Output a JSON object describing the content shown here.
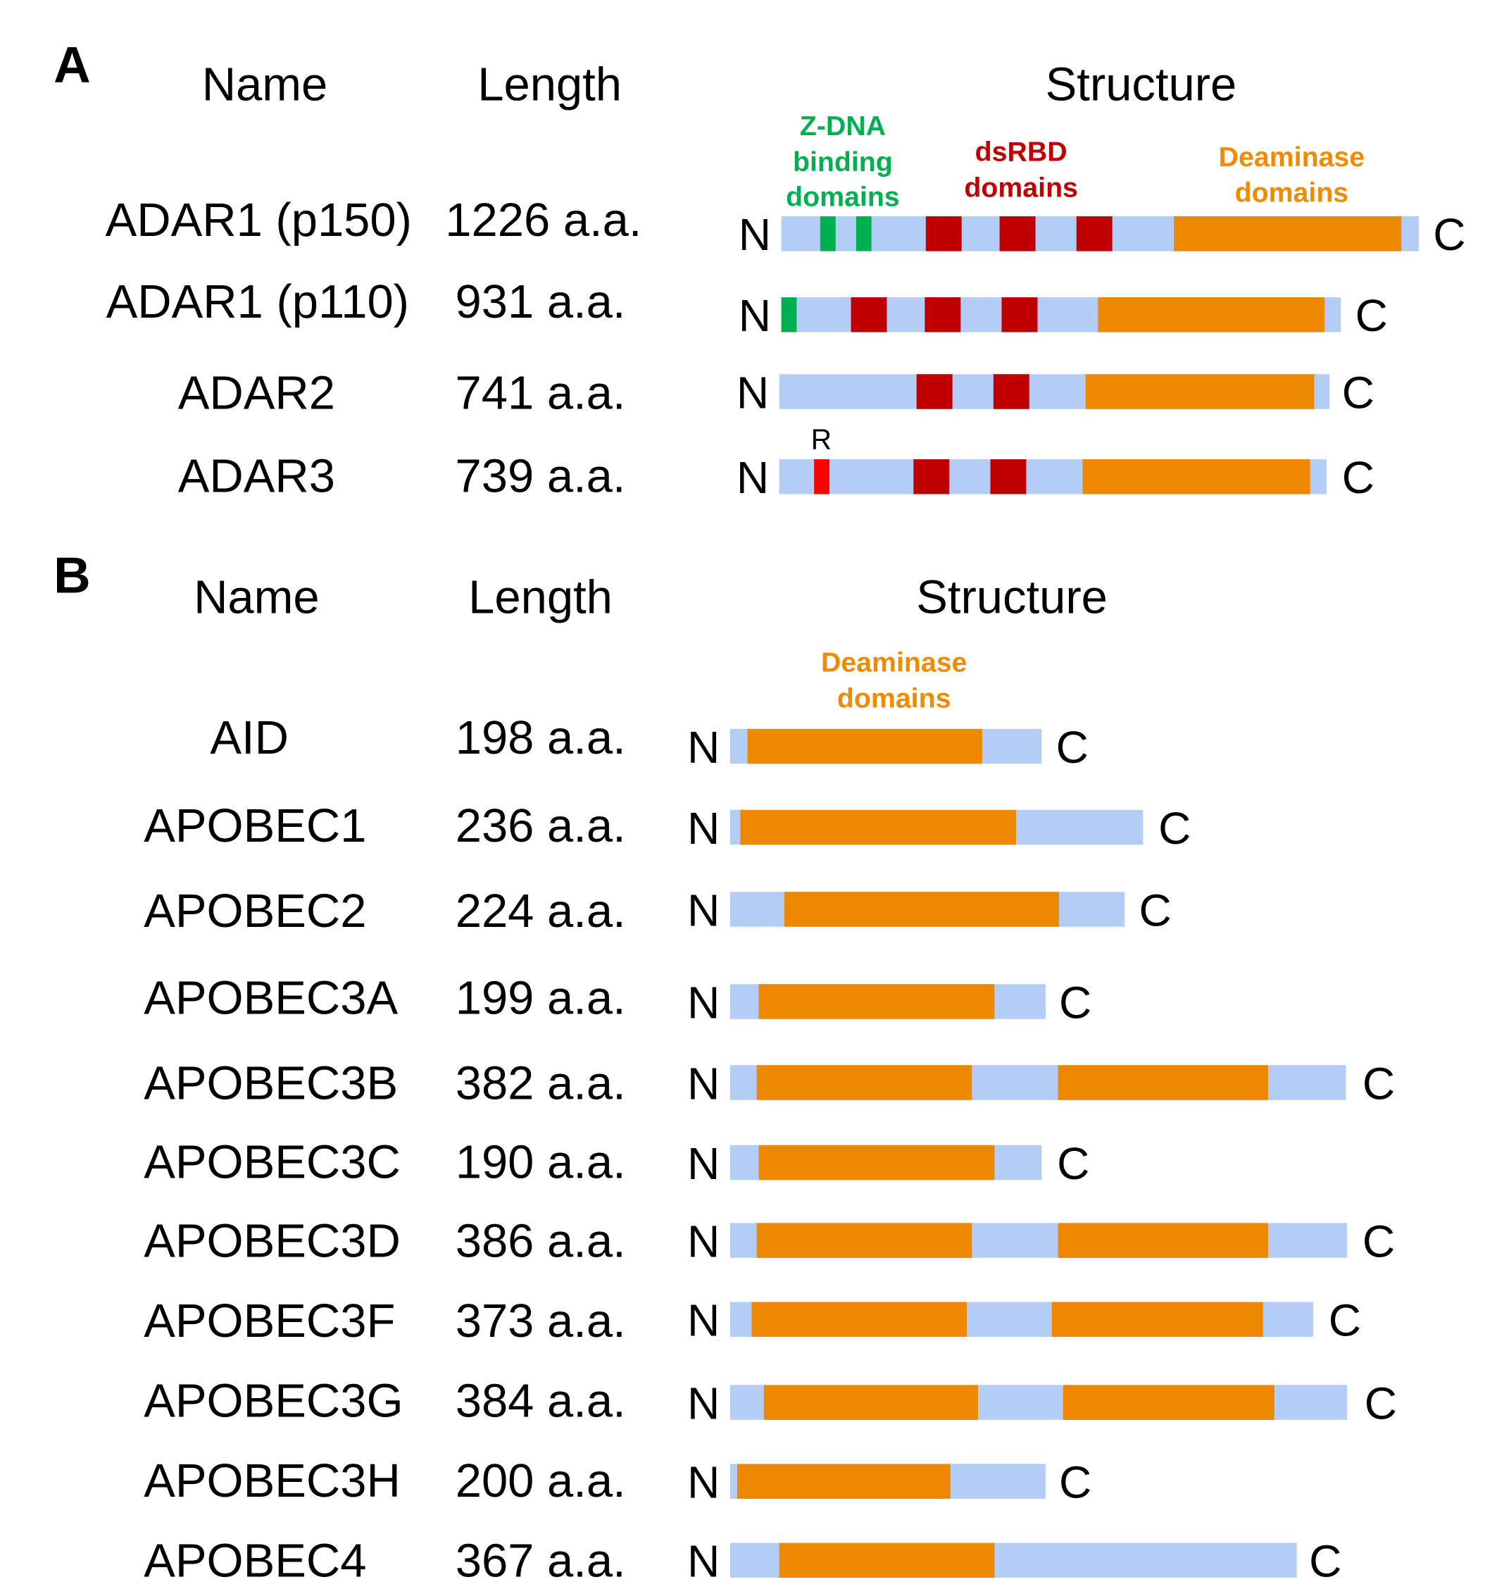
{
  "colors": {
    "linker": "#b4cdf6",
    "deaminase": "#ee8800",
    "dsrbd": "#c00000",
    "zdna": "#00b050",
    "r_domain": "#ff0000"
  },
  "panel_a": {
    "label": "A",
    "headers": {
      "name": "Name",
      "length": "Length",
      "structure": "Structure"
    },
    "legend": {
      "zdna": [
        "Z-DNA",
        "binding",
        "domains"
      ],
      "dsrbd": [
        "dsRBD",
        "domains"
      ],
      "deaminase": [
        "Deaminase",
        "domains"
      ]
    },
    "r_label": "R",
    "rows": [
      {
        "name": "ADAR1 (p150)",
        "length": "1226 a.a.",
        "n": "N",
        "c": "C"
      },
      {
        "name": "ADAR1 (p110)",
        "length": "931 a.a.",
        "n": "N",
        "c": "C"
      },
      {
        "name": "ADAR2",
        "length": "741 a.a.",
        "n": "N",
        "c": "C"
      },
      {
        "name": "ADAR3",
        "length": "739 a.a.",
        "n": "N",
        "c": "C"
      }
    ]
  },
  "panel_b": {
    "label": "B",
    "headers": {
      "name": "Name",
      "length": "Length",
      "structure": "Structure"
    },
    "legend": {
      "deaminase": [
        "Deaminase",
        "domains"
      ]
    },
    "rows": [
      {
        "name": "AID",
        "length": "198 a.a.",
        "n": "N",
        "c": "C"
      },
      {
        "name": "APOBEC1",
        "length": "236 a.a.",
        "n": "N",
        "c": "C"
      },
      {
        "name": "APOBEC2",
        "length": "224 a.a.",
        "n": "N",
        "c": "C"
      },
      {
        "name": "APOBEC3A",
        "length": "199 a.a.",
        "n": "N",
        "c": "C"
      },
      {
        "name": "APOBEC3B",
        "length": "382 a.a.",
        "n": "N",
        "c": "C"
      },
      {
        "name": "APOBEC3C",
        "length": "190 a.a.",
        "n": "N",
        "c": "C"
      },
      {
        "name": "APOBEC3D",
        "length": "386 a.a.",
        "n": "N",
        "c": "C"
      },
      {
        "name": "APOBEC3F",
        "length": "373 a.a.",
        "n": "N",
        "c": "C"
      },
      {
        "name": "APOBEC3G",
        "length": "384 a.a.",
        "n": "N",
        "c": "C"
      },
      {
        "name": "APOBEC3H",
        "length": "200 a.a.",
        "n": "N",
        "c": "C"
      },
      {
        "name": "APOBEC4",
        "length": "367 a.a.",
        "n": "N",
        "c": "C"
      }
    ]
  }
}
